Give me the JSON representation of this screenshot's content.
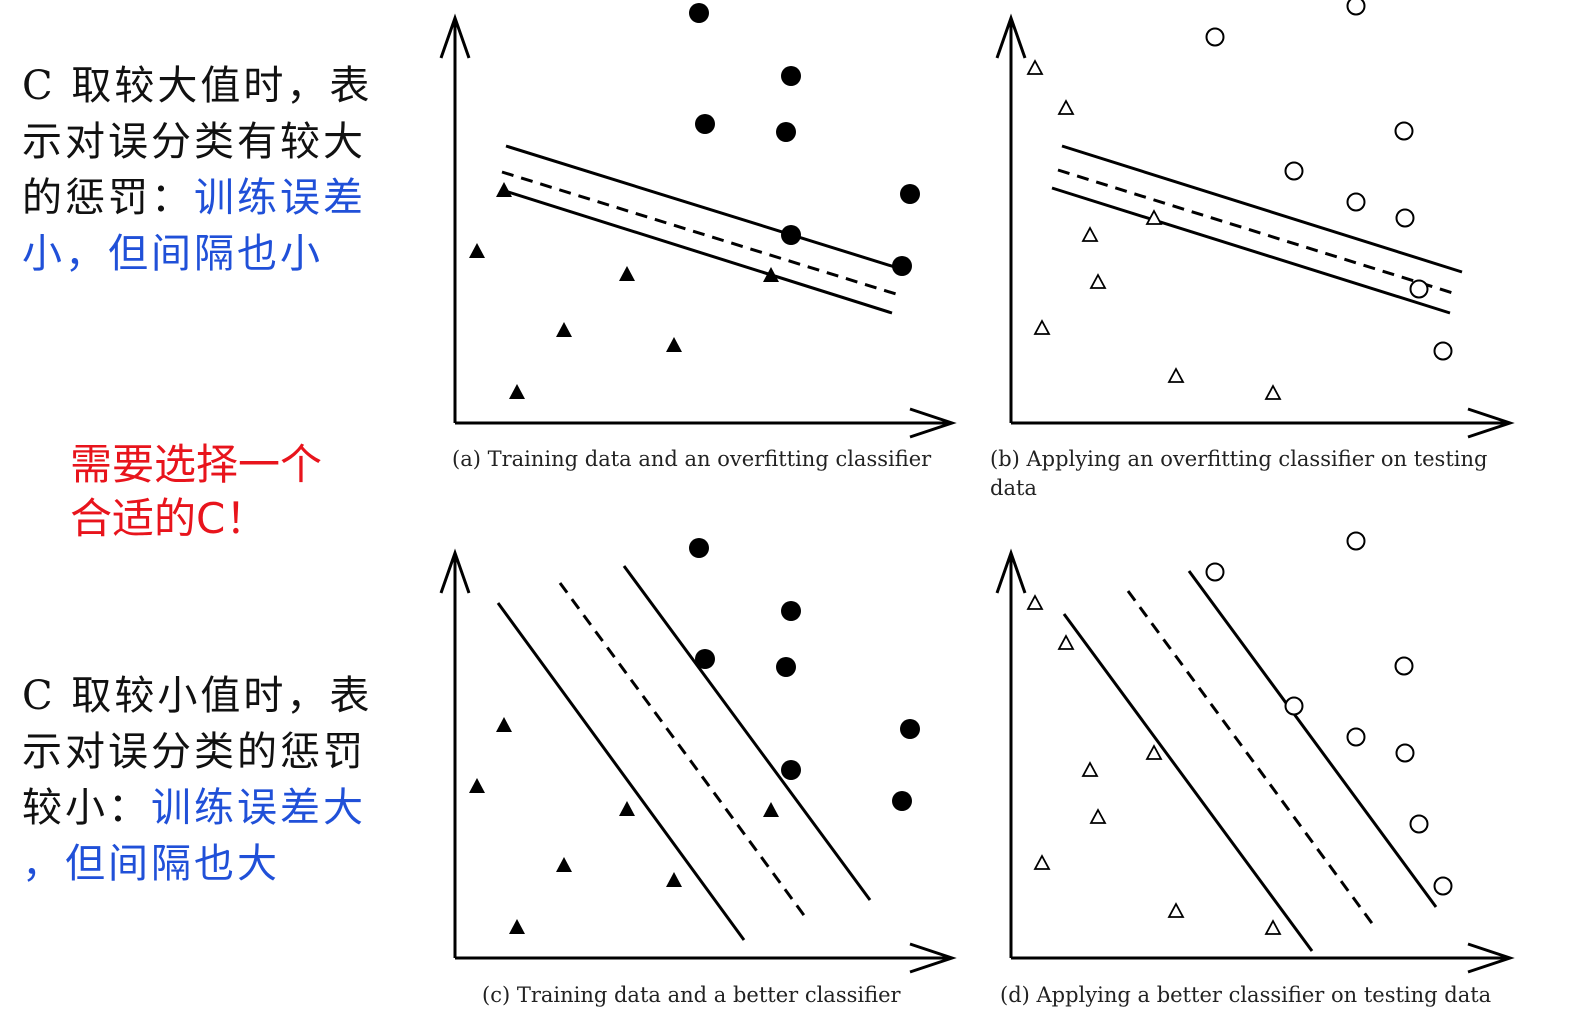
{
  "notes": {
    "large_c": {
      "prefix": "C 取较大值时，表\n示对误分类有较大\n的惩罚：",
      "highlight": "训练误差\n小，但间隔也小",
      "highlight_color": "#2050d8"
    },
    "small_c": {
      "prefix": "C 取较小值时，表\n示对误分类的惩罚\n较小：",
      "highlight": "训练误差大\n，但间隔也大",
      "highlight_color": "#2050d8"
    },
    "alert": {
      "text": "需要选择一个\n合适的C！",
      "color": "#e8141c"
    }
  },
  "panels": [
    {
      "id": "a",
      "caption": "(a) Training data and an overfitting classifier"
    },
    {
      "id": "b",
      "caption_lines": [
        "(b) Applying an overfitting classifier on testing",
        "data"
      ]
    },
    {
      "id": "c",
      "caption": "(c) Training data and a better classifier"
    },
    {
      "id": "d",
      "caption": "(d) Applying a better classifier on testing data"
    }
  ]
}
